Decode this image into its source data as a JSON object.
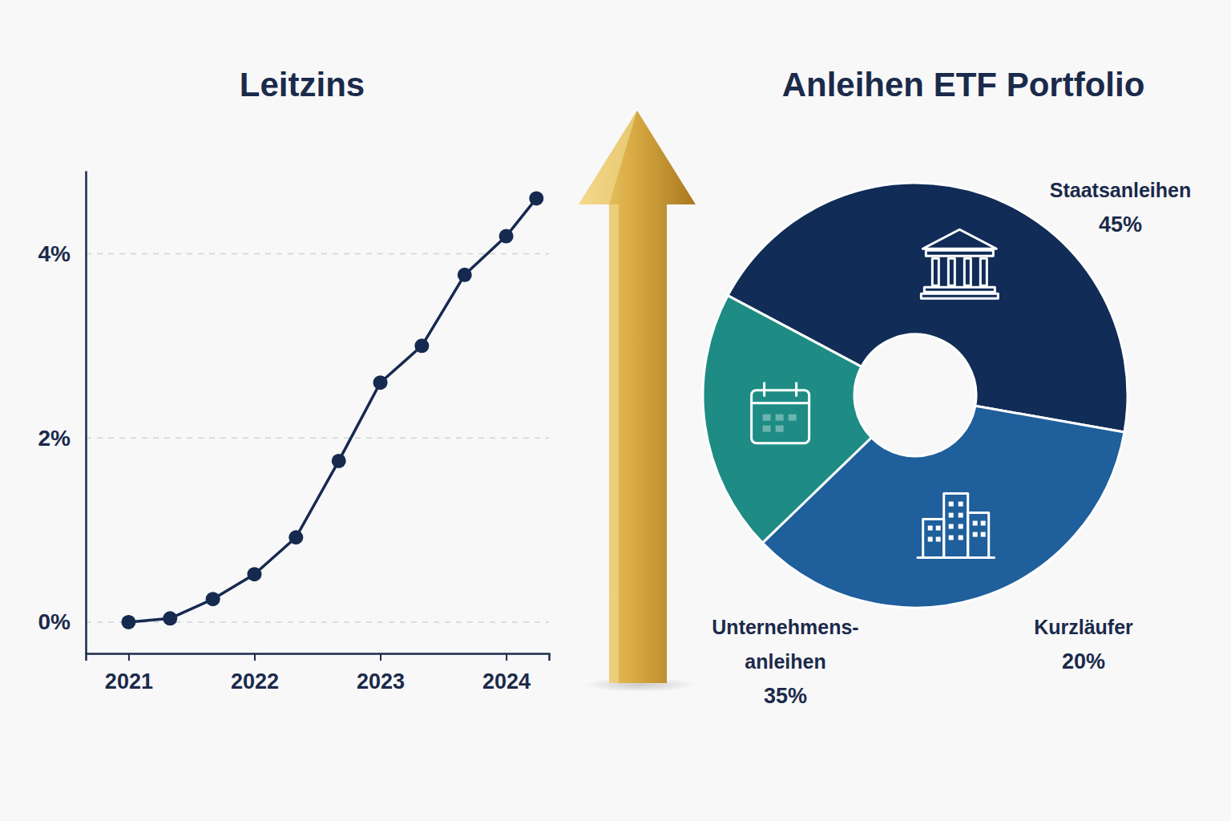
{
  "chart_data": [
    {
      "type": "line",
      "title": "Leitzins",
      "x": [
        2021,
        2021.33,
        2021.67,
        2022,
        2022.33,
        2022.67,
        2023,
        2023.33,
        2023.67,
        2024,
        2024.24
      ],
      "values": [
        0,
        0.04,
        0.25,
        0.52,
        0.92,
        1.75,
        2.6,
        3,
        3.77,
        4.19,
        4.6
      ],
      "color": "#16294f",
      "marker": "circle",
      "xlim": [
        2020.66,
        2024.34
      ],
      "xticks": [
        2021,
        2022,
        2023,
        2024
      ],
      "ylim": [
        -0.34,
        4.9
      ],
      "yticks": [
        {
          "value": 0,
          "label": "0%"
        },
        {
          "value": 2,
          "label": "2%"
        },
        {
          "value": 4,
          "label": "4%"
        }
      ],
      "grid": true
    },
    {
      "type": "pie",
      "title": "Anleihen ETF Portfolio",
      "categories": [
        "Staatsanleihen",
        "Unternehmens-anleihen",
        "Kurzläufer"
      ],
      "values": [
        45,
        35,
        20
      ],
      "value_labels": [
        "45%",
        "35%",
        "20%"
      ],
      "colors": [
        "#102c57",
        "#1f5f9c",
        "#1e8c84"
      ],
      "data_labels": true
    }
  ]
}
